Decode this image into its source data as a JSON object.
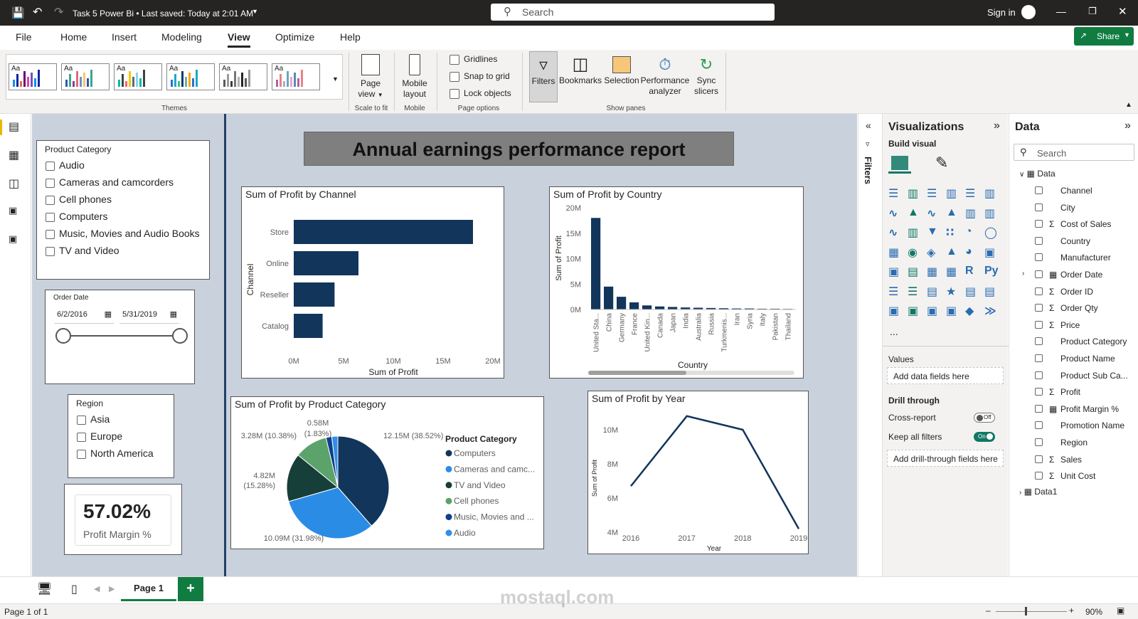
{
  "titlebar": {
    "title": "Task 5 Power Bi • Last saved: Today at 2:01 AM",
    "search_placeholder": "Search",
    "sign_in": "Sign in"
  },
  "ribbon": {
    "tabs": [
      "File",
      "Home",
      "Insert",
      "Modeling",
      "View",
      "Optimize",
      "Help"
    ],
    "active_tab": "View",
    "share_label": "Share",
    "themes_label": "Themes",
    "theme_tile_text": "Aa",
    "page_view": "Page view",
    "scale_to_fit": "Scale to fit",
    "mobile_layout": "Mobile layout",
    "mobile": "Mobile",
    "gridlines": "Gridlines",
    "snap_to_grid": "Snap to grid",
    "lock_objects": "Lock objects",
    "page_options": "Page options",
    "filters": "Filters",
    "bookmarks": "Bookmarks",
    "selection": "Selection",
    "performance_analyzer": "Performance analyzer",
    "sync_slicers": "Sync slicers",
    "show_panes": "Show panes"
  },
  "report": {
    "title": "Annual earnings performance report",
    "product_slicer": {
      "title": "Product Category",
      "items": [
        "Audio",
        "Cameras and camcorders",
        "Cell phones",
        "Computers",
        "Music, Movies and Audio Books",
        "TV and Video"
      ]
    },
    "date_slicer": {
      "title": "Order Date",
      "start": "6/2/2016",
      "end": "5/31/2019"
    },
    "region_slicer": {
      "title": "Region",
      "items": [
        "Asia",
        "Europe",
        "North America"
      ]
    },
    "kpi": {
      "value": "57.02%",
      "label": "Profit Margin %"
    }
  },
  "chart_data": [
    {
      "type": "bar",
      "title": "Sum of Profit by Channel",
      "xlabel": "Sum of Profit",
      "ylabel": "Channel",
      "categories": [
        "Store",
        "Online",
        "Reseller",
        "Catalog"
      ],
      "values": [
        18.0,
        6.5,
        4.1,
        2.9
      ],
      "unit": "M",
      "xlim": [
        0,
        20
      ],
      "xticks": [
        "0M",
        "5M",
        "10M",
        "15M",
        "20M"
      ],
      "color": "#12355b"
    },
    {
      "type": "bar",
      "title": "Sum of Profit by Country",
      "xlabel": "Country",
      "ylabel": "Sum of Profit",
      "categories": [
        "United Sta...",
        "China",
        "Germany",
        "France",
        "United Kin...",
        "Canada",
        "Japan",
        "India",
        "Australia",
        "Russia",
        "Turkmenis...",
        "Iran",
        "Syria",
        "Italy",
        "Pakistan",
        "Thailand"
      ],
      "values": [
        18.0,
        4.5,
        2.5,
        1.4,
        0.8,
        0.6,
        0.5,
        0.4,
        0.35,
        0.3,
        0.25,
        0.2,
        0.2,
        0.15,
        0.15,
        0.12
      ],
      "ylim": [
        0,
        20
      ],
      "yticks": [
        "0M",
        "5M",
        "10M",
        "15M",
        "20M"
      ],
      "color": "#12355b"
    },
    {
      "type": "pie",
      "title": "Sum of Profit by Product Category",
      "legend_title": "Product Category",
      "categories": [
        "Computers",
        "Cameras and camc...",
        "TV and Video",
        "Cell phones",
        "Music, Movies and ...",
        "Audio"
      ],
      "values": [
        12.15,
        10.09,
        4.82,
        3.28,
        0.58,
        0.6
      ],
      "labels": [
        "12.15M (38.52%)",
        "10.09M (31.98%)",
        "4.82M (15.28%)",
        "3.28M (10.38%)",
        "0.58M (1.83%)",
        ""
      ],
      "colors": [
        "#12355b",
        "#2b8ce6",
        "#173f3a",
        "#5ba36b",
        "#0f3f8c",
        "#2f8fea"
      ]
    },
    {
      "type": "line",
      "title": "Sum of Profit by Year",
      "xlabel": "Year",
      "ylabel": "Sum of Profit",
      "x": [
        "2016",
        "2017",
        "2018",
        "2019"
      ],
      "values": [
        6.7,
        10.8,
        10.0,
        4.2
      ],
      "ylim": [
        4,
        11
      ],
      "yticks": [
        "4M",
        "6M",
        "8M",
        "10M"
      ],
      "color": "#12355b"
    }
  ],
  "visualizations": {
    "title": "Visualizations",
    "build_visual": "Build visual",
    "values_label": "Values",
    "add_data_fields": "Add data fields here",
    "drill_through": "Drill through",
    "cross_report": "Cross-report",
    "cross_report_state": "Off",
    "keep_all_filters": "Keep all filters",
    "keep_all_filters_state": "On",
    "add_drill_fields": "Add drill-through fields here",
    "more": "..."
  },
  "filters_label": "Filters",
  "data_pane": {
    "title": "Data",
    "search_placeholder": "Search",
    "table": "Data",
    "fields": [
      {
        "name": "Channel",
        "sigma": false
      },
      {
        "name": "City",
        "sigma": false
      },
      {
        "name": "Cost of Sales",
        "sigma": true
      },
      {
        "name": "Country",
        "sigma": false
      },
      {
        "name": "Manufacturer",
        "sigma": false
      },
      {
        "name": "Order Date",
        "sigma": false,
        "table": true
      },
      {
        "name": "Order ID",
        "sigma": true
      },
      {
        "name": "Order Qty",
        "sigma": true
      },
      {
        "name": "Price",
        "sigma": true
      },
      {
        "name": "Product Category",
        "sigma": false
      },
      {
        "name": "Product Name",
        "sigma": false
      },
      {
        "name": "Product Sub Ca...",
        "sigma": false
      },
      {
        "name": "Profit",
        "sigma": true
      },
      {
        "name": "Profit Margin %",
        "sigma": false,
        "calc": true
      },
      {
        "name": "Promotion Name",
        "sigma": false
      },
      {
        "name": "Region",
        "sigma": false
      },
      {
        "name": "Sales",
        "sigma": true
      },
      {
        "name": "Unit Cost",
        "sigma": true
      }
    ],
    "table2": "Data1"
  },
  "pages": {
    "tab": "Page 1",
    "add": "+"
  },
  "status": {
    "page_info": "Page 1 of 1",
    "zoom": "90%"
  },
  "watermark": "mostaql.com"
}
